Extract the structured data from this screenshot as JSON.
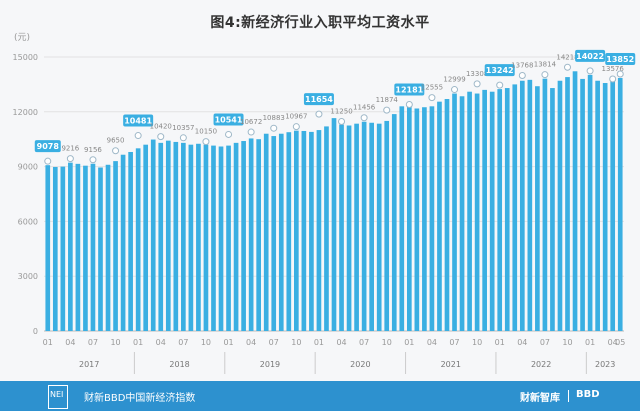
{
  "title": "图4:新经济行业入职平均工资水平",
  "footer": {
    "logo_text": "NEI",
    "source": "财新BBD中国新经济指数",
    "brand_1": "财新智库",
    "brand_2": "BBD"
  },
  "colors": {
    "bar": "#3aafe2",
    "highlight": "#3aafe2",
    "footer": "#2d91cf"
  },
  "chart_data": {
    "type": "bar",
    "ylabel": "(元)",
    "ylim": [
      0,
      15000
    ],
    "yticks": [
      0,
      3000,
      6000,
      9000,
      12000,
      15000
    ],
    "grid": true,
    "x_tick_labels": [
      "01",
      "04",
      "07",
      "10",
      "01",
      "04",
      "07",
      "10",
      "01",
      "04",
      "07",
      "10",
      "01",
      "04",
      "07",
      "10",
      "01",
      "04",
      "07",
      "10",
      "01",
      "04",
      "07",
      "10",
      "01",
      "04",
      "05"
    ],
    "year_labels": [
      "2017",
      "2018",
      "2019",
      "2020",
      "2021",
      "2022",
      "2023"
    ],
    "values": [
      9078,
      8980,
      9000,
      9216,
      9150,
      9050,
      9156,
      8950,
      9100,
      9300,
      9650,
      9800,
      10000,
      10200,
      10481,
      10300,
      10420,
      10350,
      10300,
      10200,
      10250,
      10200,
      10150,
      10100,
      10150,
      10300,
      10400,
      10541,
      10500,
      10800,
      10672,
      10800,
      10883,
      10967,
      10950,
      10900,
      11000,
      11200,
      11654,
      11300,
      11250,
      11350,
      11456,
      11400,
      11350,
      11500,
      11874,
      12300,
      12350,
      12181,
      12250,
      12300,
      12555,
      12700,
      12999,
      12850,
      13100,
      13000,
      13200,
      13100,
      13242,
      13300,
      13500,
      13700,
      13750,
      13400,
      13814,
      13300,
      13700,
      13900,
      14218,
      13800,
      14022,
      13700,
      13576,
      13700,
      13852
    ],
    "data_labels": [
      {
        "value": 9078,
        "highlight": true
      },
      {
        "value": 9216,
        "highlight": false
      },
      {
        "value": 9156,
        "highlight": false
      },
      {
        "value": 9650,
        "highlight": false
      },
      {
        "value": 10481,
        "highlight": true
      },
      {
        "value": 10420,
        "highlight": false
      },
      {
        "value": 10357,
        "highlight": false
      },
      {
        "value": 10150,
        "highlight": false
      },
      {
        "value": 10541,
        "highlight": true
      },
      {
        "value": 10672,
        "highlight": false
      },
      {
        "value": 10883,
        "highlight": false
      },
      {
        "value": 10967,
        "highlight": false
      },
      {
        "value": 11654,
        "highlight": true
      },
      {
        "value": 11250,
        "highlight": false
      },
      {
        "value": 11456,
        "highlight": false
      },
      {
        "value": 11874,
        "highlight": false
      },
      {
        "value": 12181,
        "highlight": true
      },
      {
        "value": 12555,
        "highlight": false
      },
      {
        "value": 12999,
        "highlight": false
      },
      {
        "value": 13308,
        "highlight": false
      },
      {
        "value": 13242,
        "highlight": true
      },
      {
        "value": 13768,
        "highlight": false
      },
      {
        "value": 13814,
        "highlight": false
      },
      {
        "value": 14218,
        "highlight": false
      },
      {
        "value": 14022,
        "highlight": true
      },
      {
        "value": 13576,
        "highlight": false
      },
      {
        "value": 13852,
        "highlight": true
      }
    ]
  }
}
